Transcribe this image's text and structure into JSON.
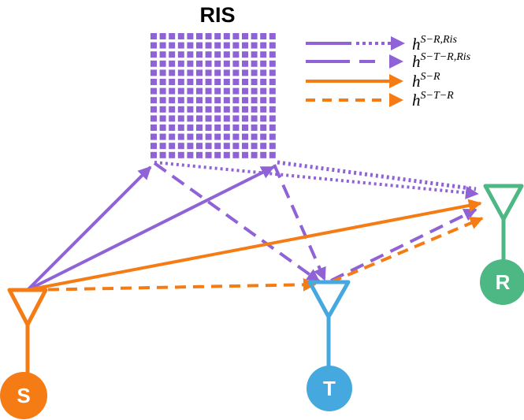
{
  "title": "RIS",
  "colors": {
    "ris": "#8F63D6",
    "source": "#F57C14",
    "target": "#45A8DF",
    "receiver": "#4DB884"
  },
  "nodes": {
    "source": {
      "label": "S"
    },
    "target": {
      "label": "T"
    },
    "receiver": {
      "label": "R"
    }
  },
  "legend": [
    {
      "base": "h",
      "sup": "S−R,Ris",
      "style": "dash-dot-dot",
      "color": "purple"
    },
    {
      "base": "h",
      "sup": "S−T−R,Ris",
      "style": "long-dash",
      "color": "purple"
    },
    {
      "base": "h",
      "sup": "S−R",
      "style": "solid",
      "color": "orange"
    },
    {
      "base": "h",
      "sup": "S−T−R",
      "style": "dashed",
      "color": "orange"
    }
  ]
}
